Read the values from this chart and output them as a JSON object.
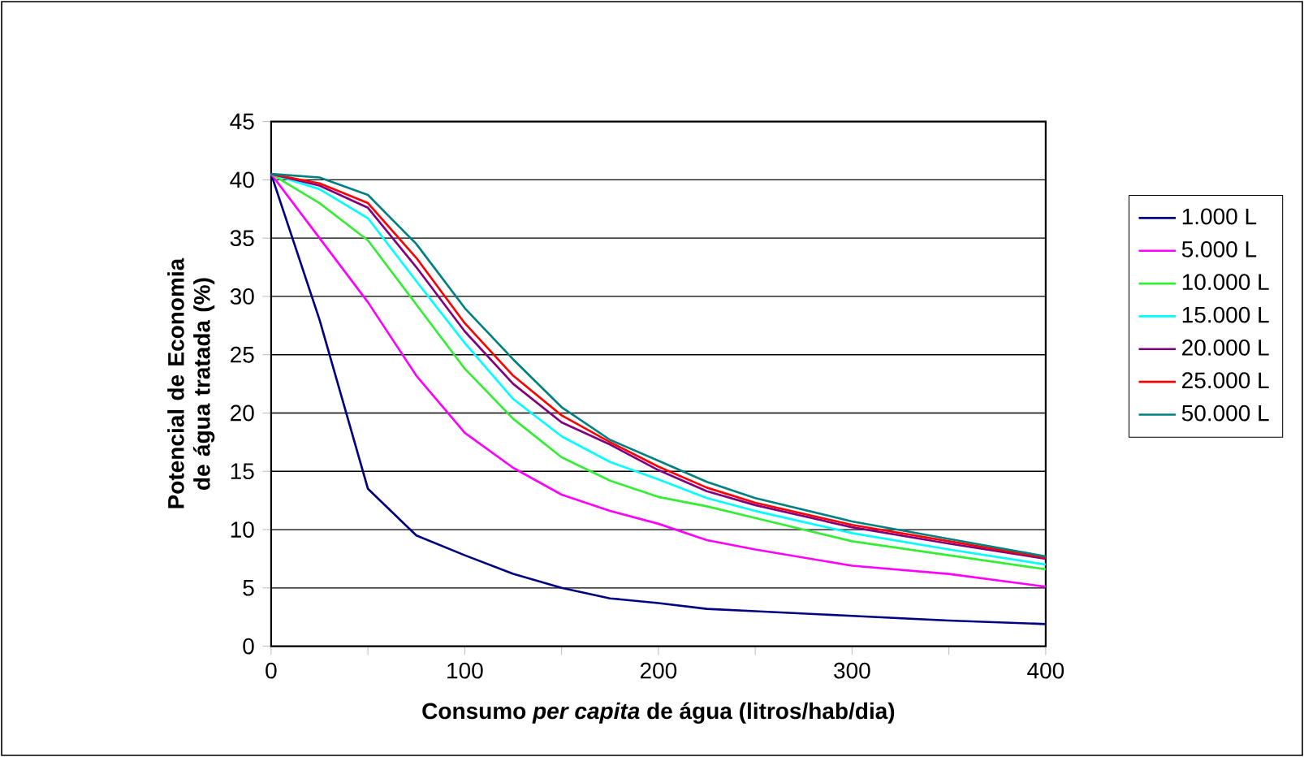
{
  "chart_data": {
    "type": "line",
    "xlabel": "Consumo *per capita* de água (litros/hab/dia)",
    "ylabel": "Potencial de Economia de água tratada (%)",
    "x": [
      0,
      25,
      50,
      75,
      100,
      125,
      150,
      175,
      200,
      225,
      250,
      300,
      350,
      400
    ],
    "xlim": [
      0,
      400
    ],
    "xticks": [
      0,
      {
        "value": 50,
        "label": null
      },
      100,
      {
        "value": 150,
        "label": null
      },
      200,
      {
        "value": 250,
        "label": null
      },
      300,
      {
        "value": 350,
        "label": null
      },
      400
    ],
    "ylim": [
      0,
      45
    ],
    "yticks": [
      0,
      5,
      10,
      15,
      20,
      25,
      30,
      35,
      40,
      45
    ],
    "grid": "y",
    "legend": "right",
    "marker": "none",
    "line_style": "solid",
    "series": [
      {
        "name": "1.000 L",
        "color": "#000080",
        "values": [
          40.5,
          28,
          13.5,
          9.5,
          7.8,
          6.2,
          5,
          4.1,
          3.7,
          3.2,
          3.0,
          2.6,
          2.2,
          1.9
        ]
      },
      {
        "name": "5.000 L",
        "color": "#ff00ff",
        "values": [
          40.5,
          35,
          29.5,
          23.2,
          18.3,
          15.3,
          13,
          11.6,
          10.5,
          9.1,
          8.3,
          6.9,
          6.2,
          5.1
        ]
      },
      {
        "name": "10.000 L",
        "color": "#33ee33",
        "values": [
          40.5,
          38,
          34.8,
          29.3,
          23.8,
          19.5,
          16.2,
          14.2,
          12.8,
          12.0,
          11.0,
          9.0,
          7.8,
          6.6
        ]
      },
      {
        "name": "15.000 L",
        "color": "#00ffff",
        "values": [
          40.5,
          39.2,
          36.7,
          31.3,
          26,
          21.2,
          18,
          15.8,
          14.3,
          12.7,
          11.6,
          9.7,
          8.3,
          7.0
        ]
      },
      {
        "name": "20.000 L",
        "color": "#800080",
        "values": [
          40.5,
          39.5,
          37.6,
          32.5,
          27,
          22.5,
          19.2,
          17.3,
          15.1,
          13.3,
          12.1,
          10.2,
          8.8,
          7.5
        ]
      },
      {
        "name": "25.000 L",
        "color": "#ff0000",
        "values": [
          40.5,
          39.7,
          38,
          33.3,
          27.7,
          23.2,
          19.8,
          17.5,
          15.4,
          13.6,
          12.3,
          10.4,
          9.0,
          7.6
        ]
      },
      {
        "name": "50.000 L",
        "color": "#008080",
        "values": [
          40.5,
          40.2,
          38.7,
          34.5,
          29,
          24.6,
          20.5,
          17.7,
          15.9,
          14.1,
          12.7,
          10.7,
          9.2,
          7.7
        ]
      }
    ]
  }
}
